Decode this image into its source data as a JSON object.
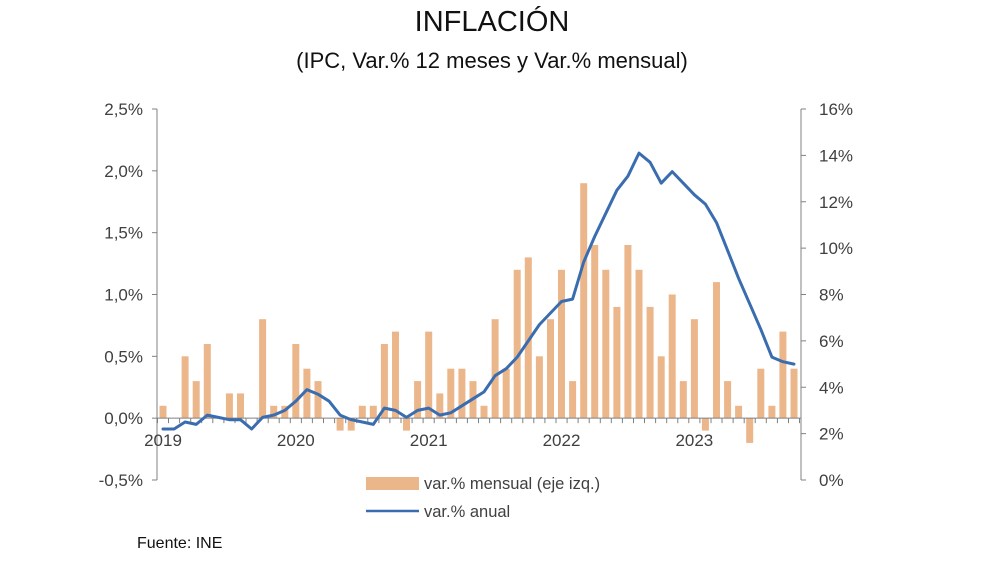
{
  "chart_data": {
    "type": "bar+line",
    "title": "INFLACIÓN",
    "subtitle": "(IPC, Var.% 12 meses y Var.% mensual)",
    "source": "Fuente: INE",
    "x_tick_labels": [
      "2019",
      "2020",
      "2021",
      "2022",
      "2023"
    ],
    "start": "2019-01",
    "months": 58,
    "left_axis": {
      "label": "var.% mensual",
      "ylim": [
        -0.5,
        2.5
      ],
      "ticks": [
        -0.5,
        0.0,
        0.5,
        1.0,
        1.5,
        2.0,
        2.5
      ],
      "tick_labels": [
        "-0,5%",
        "0,0%",
        "0,5%",
        "1,0%",
        "1,5%",
        "2,0%",
        "2,5%"
      ]
    },
    "right_axis": {
      "label": "var.% anual",
      "ylim": [
        0,
        16
      ],
      "ticks": [
        0,
        2,
        4,
        6,
        8,
        10,
        12,
        14,
        16
      ],
      "tick_labels": [
        "0%",
        "2%",
        "4%",
        "6%",
        "8%",
        "10%",
        "12%",
        "14%",
        "16%"
      ]
    },
    "grid": false,
    "legend_position": "bottom-center",
    "series": [
      {
        "name": "var.% mensual (eje izq.)",
        "type": "bar",
        "axis": "left",
        "color": "#EBB68A",
        "values": [
          0.1,
          0.0,
          0.5,
          0.3,
          0.6,
          0.0,
          0.2,
          0.2,
          0.0,
          0.8,
          0.1,
          0.1,
          0.6,
          0.4,
          0.3,
          0.0,
          -0.1,
          -0.1,
          0.1,
          0.1,
          0.6,
          0.7,
          -0.1,
          0.3,
          0.7,
          0.2,
          0.4,
          0.4,
          0.3,
          0.1,
          0.8,
          0.4,
          1.2,
          1.3,
          0.5,
          0.8,
          1.2,
          0.3,
          1.9,
          1.4,
          1.2,
          0.9,
          1.4,
          1.2,
          0.9,
          0.5,
          1.0,
          0.3,
          0.8,
          -0.1,
          1.1,
          0.3,
          0.1,
          -0.2,
          0.4,
          0.1,
          0.7,
          0.4
        ]
      },
      {
        "name": "var.% anual",
        "type": "line",
        "axis": "right",
        "color": "#3A6DB0",
        "values": [
          2.2,
          2.2,
          2.5,
          2.4,
          2.8,
          2.7,
          2.6,
          2.6,
          2.2,
          2.7,
          2.8,
          3.0,
          3.4,
          3.9,
          3.7,
          3.4,
          2.8,
          2.6,
          2.5,
          2.4,
          3.1,
          3.0,
          2.7,
          3.0,
          3.1,
          2.8,
          2.9,
          3.2,
          3.5,
          3.8,
          4.5,
          4.8,
          5.3,
          6.0,
          6.7,
          7.2,
          7.7,
          7.8,
          9.4,
          10.5,
          11.5,
          12.5,
          13.1,
          14.1,
          13.7,
          12.8,
          13.3,
          12.8,
          12.3,
          11.9,
          11.1,
          9.9,
          8.7,
          7.6,
          6.5,
          5.3,
          5.1,
          5.0
        ]
      }
    ]
  }
}
